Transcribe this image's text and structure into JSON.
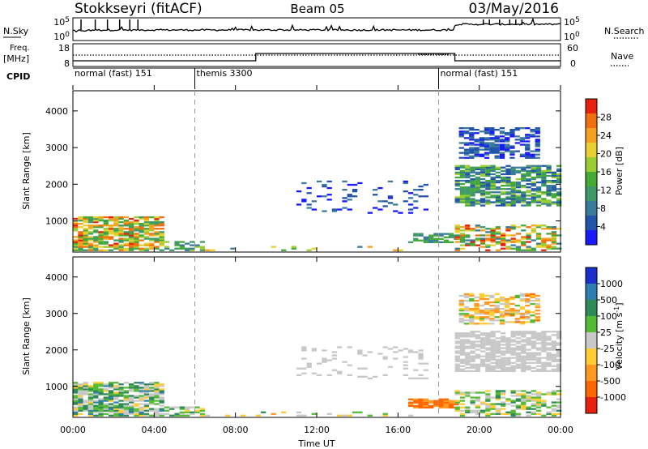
{
  "header": {
    "station": "Stokkseyri (fitACF)",
    "beam": "Beam 05",
    "date": "03/May/2016"
  },
  "summary_panels": {
    "nsky_label": "N.Sky",
    "nsearch_label": "N.Search",
    "count_ticks": [
      "10^5",
      "10^0"
    ],
    "freq_label_top": "Freq.",
    "freq_label_bottom": "[MHz]",
    "freq_ticks": [
      "18",
      "8"
    ],
    "nave_label": "Nave",
    "nave_ticks": [
      "60",
      "0"
    ],
    "cpid_label": "CPID",
    "cpid_segments": [
      {
        "name": "normal (fast) 151",
        "start_hour": 0
      },
      {
        "name": "themis 3300",
        "start_hour": 6
      },
      {
        "name": "normal (fast) 151",
        "start_hour": 18
      }
    ]
  },
  "chart_data": [
    {
      "type": "heatmap",
      "panel": "power",
      "ylabel": "Slant Range [km]",
      "yticks": [
        "1000",
        "2000",
        "3000",
        "4000"
      ],
      "ylim": [
        150,
        4550
      ],
      "xlim": [
        0,
        24
      ],
      "colorbar_label": "Power [dB]",
      "colorbar_ticks": [
        "4",
        "8",
        "12",
        "16",
        "20",
        "24",
        "28"
      ],
      "colors": [
        "#1a1aff",
        "#2255aa",
        "#3a7a9a",
        "#3d9a66",
        "#44aa33",
        "#9acd32",
        "#e8d030",
        "#f5a020",
        "#f07010",
        "#e82010"
      ],
      "echo_regions": [
        {
          "x": [
            0.0,
            4.5
          ],
          "range": [
            180,
            1100
          ],
          "density": 0.75,
          "level": [
            0.3,
            0.95
          ]
        },
        {
          "x": [
            4.5,
            6.5
          ],
          "range": [
            180,
            420
          ],
          "density": 0.55,
          "level": [
            0.2,
            0.6
          ]
        },
        {
          "x": [
            6.5,
            17.0
          ],
          "range": [
            180,
            300
          ],
          "density": 0.15,
          "level": [
            0.2,
            0.9
          ]
        },
        {
          "x": [
            11.0,
            17.5
          ],
          "range": [
            1200,
            2100
          ],
          "density": 0.12,
          "level": [
            0.0,
            0.3
          ]
        },
        {
          "x": [
            16.5,
            18.8
          ],
          "range": [
            400,
            650
          ],
          "density": 0.7,
          "level": [
            0.2,
            0.5
          ]
        },
        {
          "x": [
            18.8,
            24.0
          ],
          "range": [
            180,
            900
          ],
          "density": 0.55,
          "level": [
            0.2,
            0.95
          ]
        },
        {
          "x": [
            18.8,
            24.0
          ],
          "range": [
            1400,
            2500
          ],
          "density": 0.7,
          "level": [
            0.1,
            0.55
          ]
        },
        {
          "x": [
            19.0,
            22.8
          ],
          "range": [
            2700,
            3550
          ],
          "density": 0.6,
          "level": [
            0.0,
            0.3
          ]
        }
      ]
    },
    {
      "type": "heatmap",
      "panel": "velocity",
      "ylabel": "Slant Range [km]",
      "yticks": [
        "1000",
        "2000",
        "3000",
        "4000"
      ],
      "ylim": [
        150,
        4550
      ],
      "xlim": [
        0,
        24
      ],
      "colorbar_label": "Velocity [m s^-1]",
      "colorbar_ticks": [
        "1000",
        "500",
        "100",
        "25",
        "-25",
        "-100",
        "-500",
        "-1000"
      ],
      "colors": [
        "#1a2fcc",
        "#2e7fb0",
        "#2e8b57",
        "#55bb33",
        "#c8c8c8",
        "#ffcc33",
        "#ff9922",
        "#ff6600",
        "#e82010"
      ],
      "echo_regions": [
        {
          "x": [
            0.0,
            4.5
          ],
          "range": [
            180,
            1100
          ],
          "density": 0.75,
          "level": [
            0.2,
            0.6
          ]
        },
        {
          "x": [
            4.5,
            6.5
          ],
          "range": [
            180,
            420
          ],
          "density": 0.55,
          "level": [
            0.3,
            0.6
          ]
        },
        {
          "x": [
            6.5,
            17.0
          ],
          "range": [
            180,
            300
          ],
          "density": 0.15,
          "level": [
            0.3,
            0.7
          ]
        },
        {
          "x": [
            11.0,
            17.5
          ],
          "range": [
            1200,
            2100
          ],
          "density": 0.12,
          "level": [
            0.45,
            0.55
          ]
        },
        {
          "x": [
            16.5,
            18.8
          ],
          "range": [
            400,
            650
          ],
          "density": 0.8,
          "level": [
            0.75,
            0.85
          ]
        },
        {
          "x": [
            18.8,
            24.0
          ],
          "range": [
            180,
            900
          ],
          "density": 0.55,
          "level": [
            0.3,
            0.6
          ]
        },
        {
          "x": [
            18.8,
            24.0
          ],
          "range": [
            1400,
            2500
          ],
          "density": 0.7,
          "level": [
            0.45,
            0.55
          ]
        },
        {
          "x": [
            19.0,
            22.8
          ],
          "range": [
            2700,
            3550
          ],
          "density": 0.6,
          "level": [
            0.4,
            0.8
          ]
        }
      ]
    }
  ],
  "x_axis": {
    "label": "Time UT",
    "ticks": [
      "00:00",
      "04:00",
      "08:00",
      "12:00",
      "16:00",
      "20:00",
      "00:00"
    ]
  }
}
